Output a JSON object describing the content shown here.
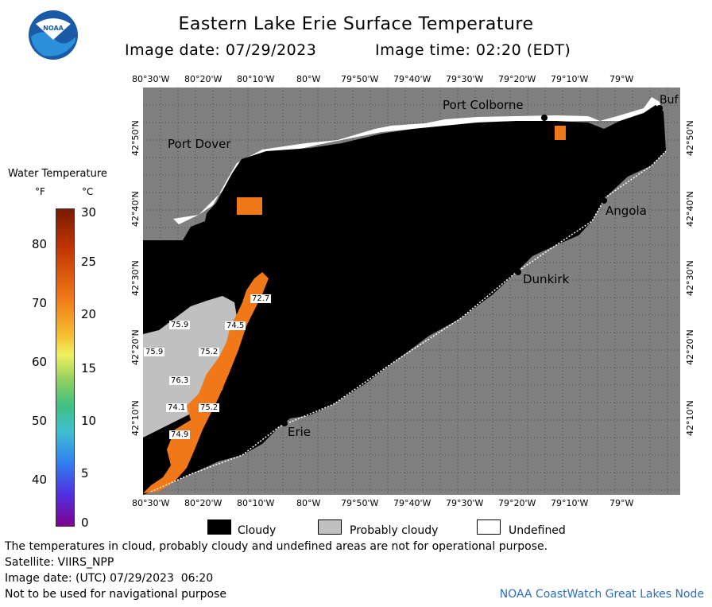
{
  "header": {
    "title": "Eastern Lake Erie Surface Temperature",
    "image_date": "Image date: 07/29/2023",
    "image_time": "Image time: 02:20 (EDT)"
  },
  "logo": {
    "text": "NOAA",
    "color": "#1a5aa6"
  },
  "map": {
    "lon_ticks": [
      "80°30'W",
      "80°20'W",
      "80°10'W",
      "80°W",
      "79°50'W",
      "79°40'W",
      "79°30'W",
      "79°20'W",
      "79°10'W",
      "79°W"
    ],
    "lat_ticks": [
      "42°50'N",
      "42°40'N",
      "42°30'N",
      "42°20'N",
      "42°10'N"
    ],
    "places": {
      "port_dover": "Port Dover",
      "port_colborne": "Port Colborne",
      "buffalo": "Buf",
      "angola": "Angola",
      "dunkirk": "Dunkirk",
      "erie": "Erie"
    },
    "temps": [
      "72.7",
      "75.9",
      "74.5",
      "75.9",
      "75.2",
      "76.3",
      "74.1",
      "75.2",
      "74.9"
    ],
    "colors": {
      "land": "#808080",
      "cloud": "#000000",
      "probably_cloudy": "#c0c0c0",
      "undefined": "#ffffff",
      "water_warm": "#f07818"
    }
  },
  "legend": {
    "title": "Water Temperature",
    "unit_f": "°F",
    "unit_c": "°C",
    "f_labels": [
      "80",
      "70",
      "60",
      "50",
      "40"
    ],
    "c_labels": [
      "30",
      "25",
      "20",
      "15",
      "10",
      "5",
      "0"
    ],
    "keys": {
      "cloudy": "Cloudy",
      "probably_cloudy": "Probably cloudy",
      "undefined": "Undefined"
    }
  },
  "footer": {
    "disclaimer": "The temperatures in cloud, probably cloudy and undefined areas are not for operational purpose.",
    "satellite": "Satellite: VIIRS_NPP",
    "image_date_utc": "Image date: (UTC) 07/29/2023  06:20",
    "nav_warning": "Not to be used for navigational purpose",
    "credit": "NOAA CoastWatch Great Lakes Node"
  }
}
